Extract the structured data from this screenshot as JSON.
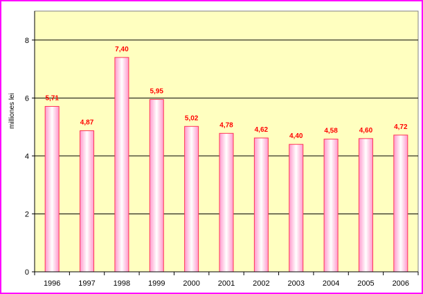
{
  "chart_data": {
    "type": "bar",
    "title": "",
    "xlabel": "",
    "ylabel": "milliones lei",
    "categories": [
      "1996",
      "1997",
      "1998",
      "1999",
      "2000",
      "2001",
      "2002",
      "2003",
      "2004",
      "2005",
      "2006"
    ],
    "values": [
      5.71,
      4.87,
      7.4,
      5.95,
      5.02,
      4.78,
      4.62,
      4.4,
      4.58,
      4.6,
      4.72
    ],
    "data_labels": [
      "5,71",
      "4,87",
      "7,40",
      "5,95",
      "5,02",
      "4,78",
      "4,62",
      "4,40",
      "4,58",
      "4,60",
      "4,72"
    ],
    "ylim": [
      0,
      9
    ],
    "yticks": [
      0,
      2,
      4,
      6,
      8
    ],
    "grid": true,
    "legend": "none",
    "colors": {
      "frame": "#ff00ff",
      "plot_background": "#ffffc0",
      "bar_edge": "#ff3355",
      "bar_center": "#ffffff",
      "bar_side": "#ff99cc",
      "data_label": "#ff0000",
      "grid": "#000000"
    }
  }
}
